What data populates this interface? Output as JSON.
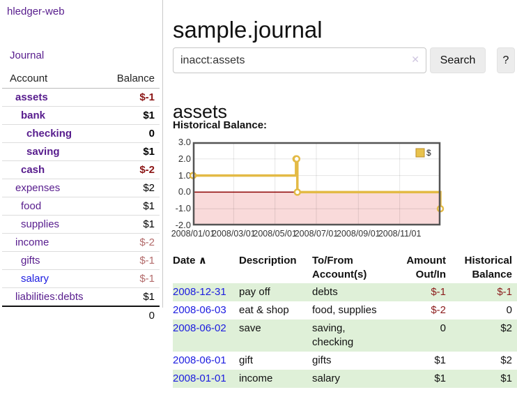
{
  "app": {
    "brand": "hledger-web"
  },
  "colors": {
    "link_purple": "#571c8d",
    "link_blue": "#1b1be0",
    "negative_bold": "#8b1515",
    "negative_light": "#b36b6b",
    "negative_table": "#8b1b1b",
    "row_green": "#dff0d8",
    "series_gold": "#e3ba45",
    "legend_fill": "#e8c24c",
    "legend_border": "#bb8f2b",
    "negative_region_pink": "#f9dada",
    "zero_line_red": "#8b0000",
    "chart_frame": "#545454"
  },
  "sidebar": {
    "journal_label": "Journal",
    "accounts": {
      "header_account": "Account",
      "header_balance": "Balance",
      "rows": [
        {
          "account": "assets",
          "balance": "$-1",
          "depth": 1,
          "active": true
        },
        {
          "account": "bank",
          "balance": "$1",
          "depth": 2,
          "active": true
        },
        {
          "account": "checking",
          "balance": "0",
          "depth": 3,
          "active": true
        },
        {
          "account": "saving",
          "balance": "$1",
          "depth": 3,
          "active": true
        },
        {
          "account": "cash",
          "balance": "$-2",
          "depth": 2,
          "active": true
        },
        {
          "account": "expenses",
          "balance": "$2",
          "depth": 1,
          "active": false
        },
        {
          "account": "food",
          "balance": "$1",
          "depth": 2,
          "active": false
        },
        {
          "account": "supplies",
          "balance": "$1",
          "depth": 2,
          "active": false
        },
        {
          "account": "income",
          "balance": "$-2",
          "depth": 1,
          "active": false
        },
        {
          "account": "gifts",
          "balance": "$-1",
          "depth": 2,
          "active": false
        },
        {
          "account": "salary",
          "balance": "$-1",
          "depth": 2,
          "active": false,
          "unvisited": true
        },
        {
          "account": "liabilities:debts",
          "balance": "$1",
          "depth": 1,
          "active": false
        }
      ],
      "total": "0"
    }
  },
  "main": {
    "title": "sample.journal",
    "search": {
      "value": "inacct:assets",
      "clear_icon": "✕",
      "button_label": "Search",
      "help_label": "?"
    },
    "account_heading": "assets",
    "register": {
      "headers": {
        "date": "Date",
        "sort_caret": "∧",
        "description": "Description",
        "accounts": "To/From Account(s)",
        "amount": "Amount Out/In",
        "balance": "Historical Balance"
      },
      "rows": [
        {
          "date": "2008-12-31",
          "description": "pay off",
          "accounts": "debts",
          "amount": "$-1",
          "balance": "$-1"
        },
        {
          "date": "2008-06-03",
          "description": "eat & shop",
          "accounts": "food, supplies",
          "amount": "$-2",
          "balance": "0"
        },
        {
          "date": "2008-06-02",
          "description": "save",
          "accounts": "saving, checking",
          "amount": "0",
          "balance": "$2"
        },
        {
          "date": "2008-06-01",
          "description": "gift",
          "accounts": "gifts",
          "amount": "$1",
          "balance": "$2"
        },
        {
          "date": "2008-01-01",
          "description": "income",
          "accounts": "salary",
          "amount": "$1",
          "balance": "$1"
        }
      ]
    }
  },
  "chart_data": {
    "type": "line",
    "step": true,
    "title": "Historical Balance:",
    "legend": [
      {
        "label": "$",
        "color": "#e8c24c"
      }
    ],
    "legend_position": "top-right",
    "x": [
      "2008-01-01",
      "2008-06-01",
      "2008-06-02",
      "2008-06-03",
      "2008-12-31"
    ],
    "y": [
      1,
      2,
      2,
      0,
      -1
    ],
    "x_range": [
      "2008-01-01",
      "2008-12-31"
    ],
    "x_ticks": [
      "2008/01/01",
      "2008/03/01",
      "2008/05/01",
      "2008/07/01",
      "2008/09/01",
      "2008/11/01"
    ],
    "y_ticks": [
      "3.0",
      "2.0",
      "1.0",
      "0.0",
      "-1.0",
      "-2.0"
    ],
    "ylim": [
      -2,
      3
    ],
    "grid": true
  }
}
